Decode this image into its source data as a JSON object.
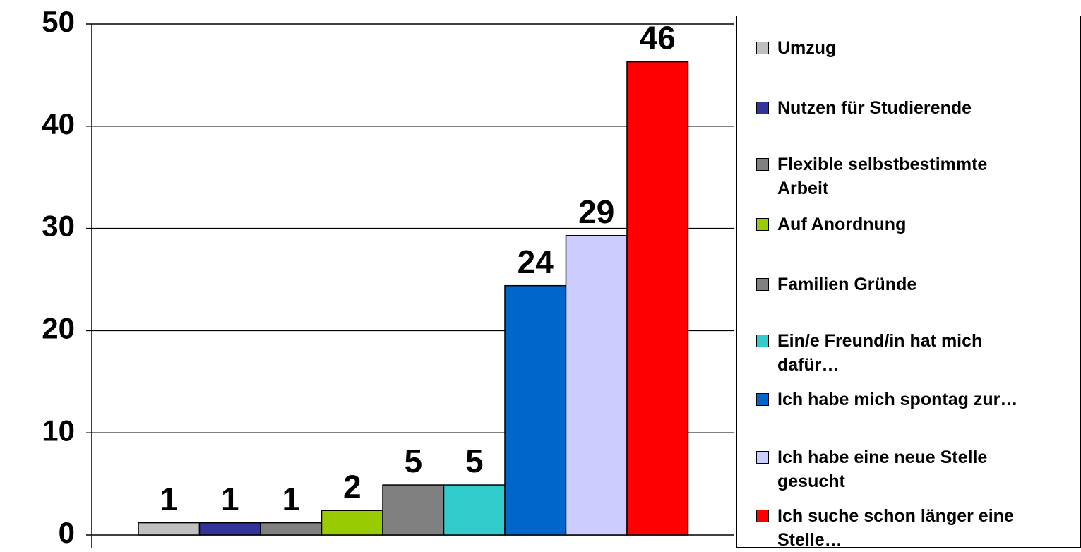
{
  "chart_data": {
    "type": "bar",
    "series": [
      {
        "name": "Umzug",
        "color": "#c0c0c0",
        "values": [
          1.2
        ],
        "value_labels": [
          "1"
        ]
      },
      {
        "name": "Nutzen für Studierende",
        "color": "#333399",
        "values": [
          1.2
        ],
        "value_labels": [
          "1"
        ]
      },
      {
        "name": "Flexible selbstbestimmte Arbeit",
        "color": "#808080",
        "values": [
          1.2
        ],
        "value_labels": [
          "1"
        ]
      },
      {
        "name": "Auf Anordnung",
        "color": "#99cc00",
        "values": [
          2.4
        ],
        "value_labels": [
          "2"
        ]
      },
      {
        "name": "Familien Gründe",
        "color": "#808080",
        "values": [
          4.9
        ],
        "value_labels": [
          "5"
        ]
      },
      {
        "name": "Ein/e Freund/in hat mich dafür…",
        "color": "#33cccc",
        "values": [
          4.9
        ],
        "value_labels": [
          "5"
        ]
      },
      {
        "name": "Ich habe mich spontag zur…",
        "color": "#0066cc",
        "values": [
          24.4
        ],
        "value_labels": [
          "24"
        ]
      },
      {
        "name": "Ich habe eine neue Stelle gesucht",
        "color": "#ccccff",
        "values": [
          29.3
        ],
        "value_labels": [
          "29"
        ]
      },
      {
        "name": "Ich suche schon länger eine Stelle…",
        "color": "#ff0000",
        "values": [
          46.3
        ],
        "value_labels": [
          "46"
        ]
      }
    ],
    "ylim": [
      0,
      50
    ],
    "yticks": [
      0,
      10,
      20,
      30,
      40,
      50
    ],
    "grid": true,
    "legend": "right"
  }
}
